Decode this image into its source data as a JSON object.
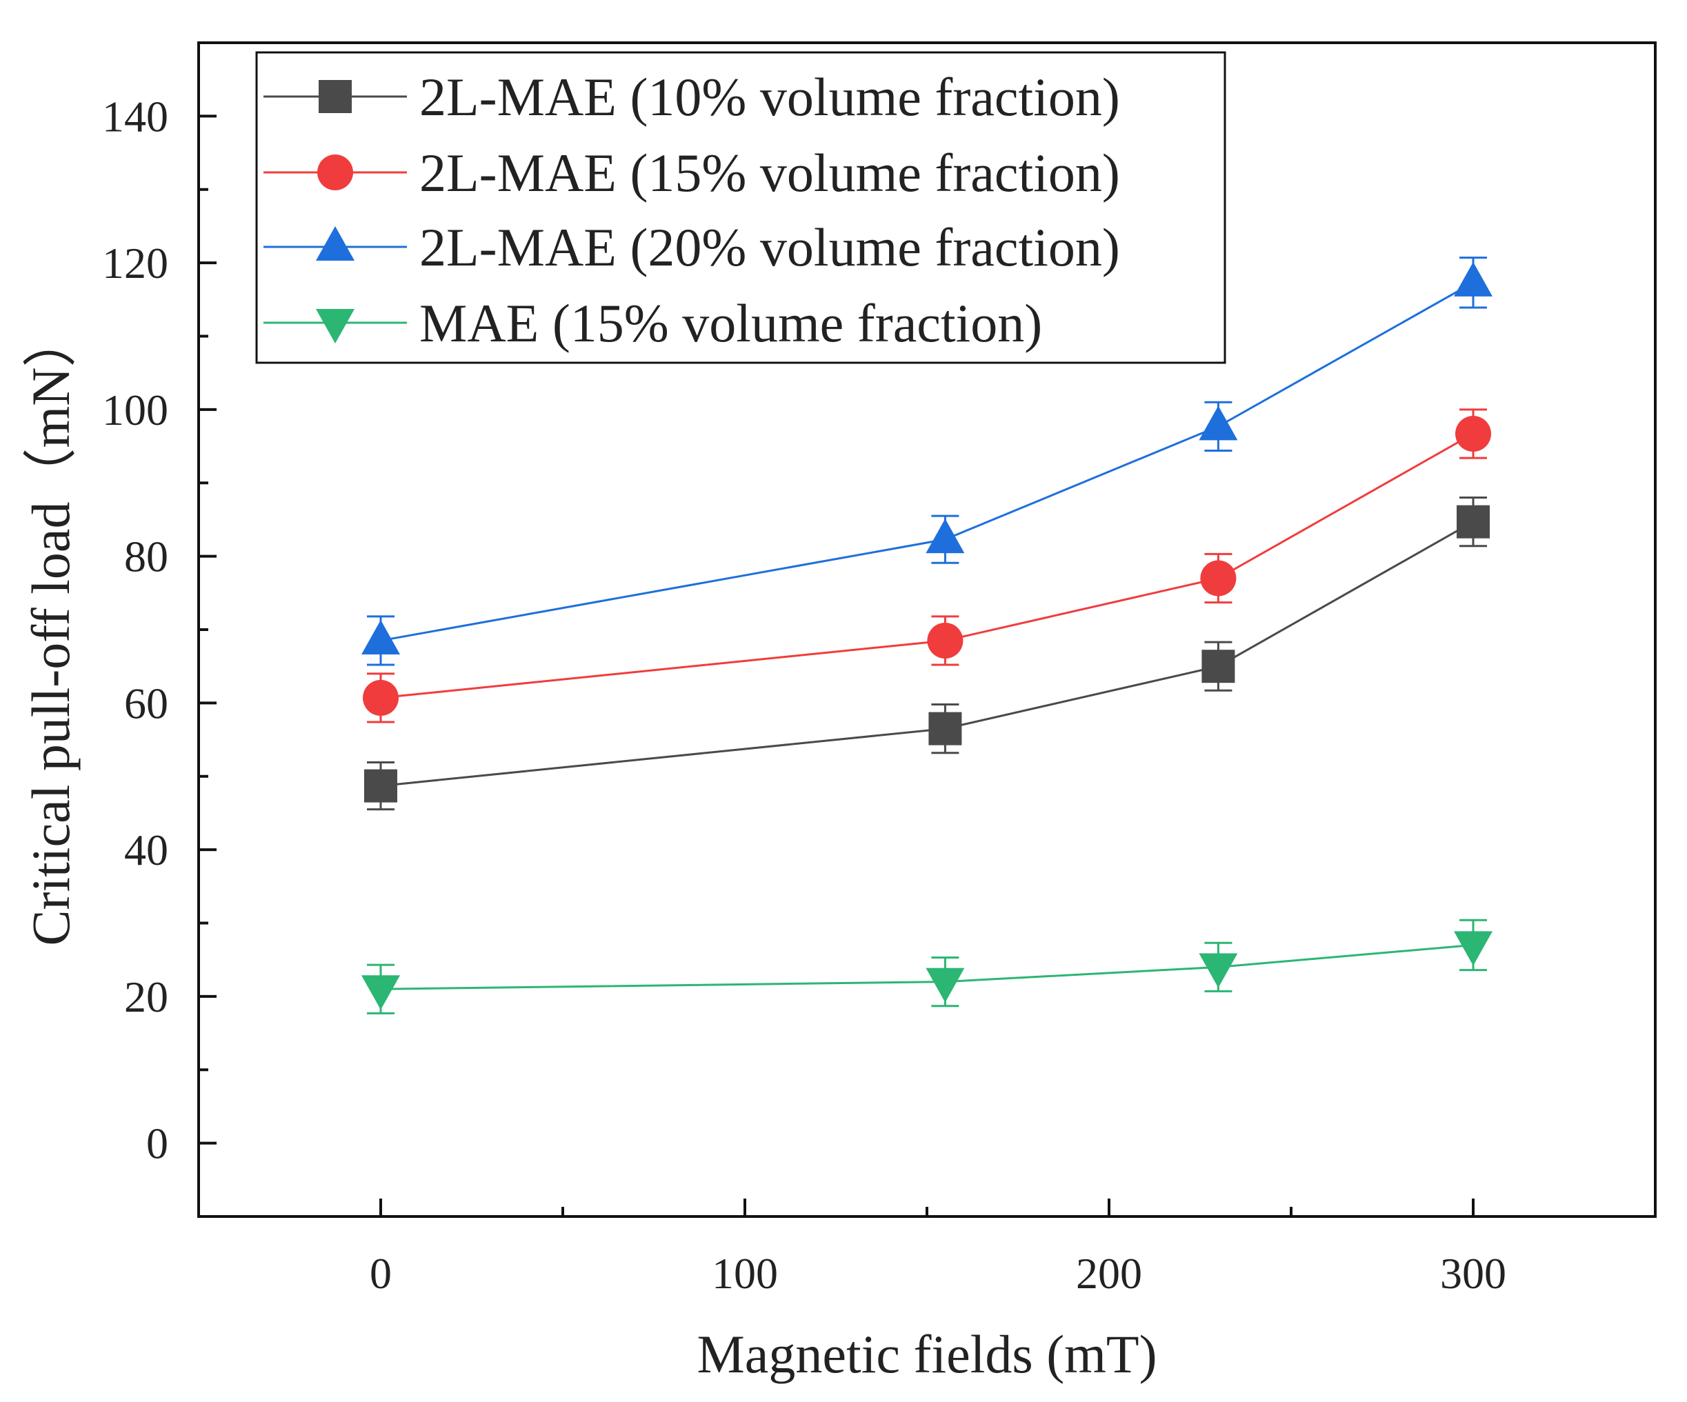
{
  "chart_data": {
    "type": "line",
    "title": "",
    "xlabel": "Magnetic fields (mT)",
    "ylabel": "Critical pull-off load（mN）",
    "xlim": [
      -50,
      350
    ],
    "ylim": [
      -10,
      150
    ],
    "xticks": [
      0,
      100,
      200,
      300
    ],
    "xtick_labels": [
      "0",
      "100",
      "200",
      "300"
    ],
    "x_minor_ticks": [
      50,
      150,
      250
    ],
    "yticks": [
      0,
      20,
      40,
      60,
      80,
      100,
      120,
      140
    ],
    "ytick_labels": [
      "0",
      "20",
      "40",
      "60",
      "80",
      "100",
      "120",
      "140"
    ],
    "y_minor_ticks": [
      10,
      30,
      50,
      70,
      90,
      110,
      130
    ],
    "x": [
      0,
      155,
      230,
      300
    ],
    "legend_position": "top-left",
    "series": [
      {
        "name": "2L-MAE (10% volume fraction)",
        "color": "#4a4a4a",
        "marker": "square",
        "values": [
          48.7,
          56.5,
          65.0,
          84.7
        ],
        "errors": [
          3.2,
          3.3,
          3.3,
          3.3
        ]
      },
      {
        "name": "2L-MAE (15% volume fraction)",
        "color": "#f03c3c",
        "marker": "circle",
        "values": [
          60.7,
          68.5,
          77.0,
          96.7
        ],
        "errors": [
          3.3,
          3.3,
          3.3,
          3.3
        ]
      },
      {
        "name": "2L-MAE (20% volume fraction)",
        "color": "#1e6fdc",
        "marker": "triangle-up",
        "values": [
          68.5,
          82.3,
          97.7,
          117.3
        ],
        "errors": [
          3.3,
          3.2,
          3.3,
          3.4
        ]
      },
      {
        "name": "MAE (15% volume fraction)",
        "color": "#2bb673",
        "marker": "triangle-down",
        "values": [
          21.0,
          22.0,
          24.0,
          27.0
        ],
        "errors": [
          3.3,
          3.3,
          3.3,
          3.4
        ]
      }
    ]
  }
}
